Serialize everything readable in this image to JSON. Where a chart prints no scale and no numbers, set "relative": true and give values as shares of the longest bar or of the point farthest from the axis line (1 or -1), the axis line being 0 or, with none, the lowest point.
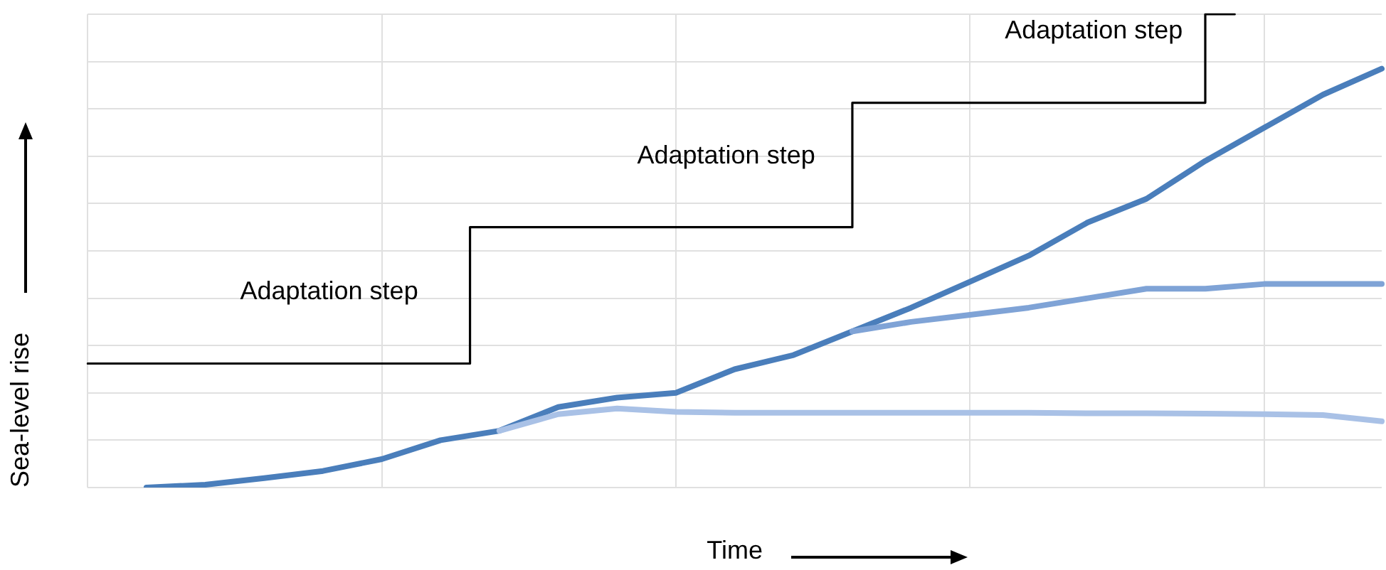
{
  "chart_data": {
    "type": "line",
    "relative": true,
    "xlabel": "Time",
    "ylabel": "Sea-level rise",
    "grid": true,
    "legend": false,
    "marker": "none",
    "line_style": "solid",
    "categories": [
      null,
      null,
      null,
      null,
      null,
      null,
      null,
      null,
      null,
      null,
      null,
      null,
      null,
      null,
      null,
      null,
      null,
      null,
      null,
      null,
      null,
      null,
      null,
      null,
      null,
      null,
      null,
      null,
      null,
      null,
      null,
      null,
      null,
      null,
      null,
      null,
      null,
      null,
      null,
      null,
      null,
      null,
      null,
      null,
      null
    ],
    "annotations": [
      "Adaptation step",
      "Adaptation step",
      "Adaptation step"
    ],
    "series": [
      {
        "type": "step",
        "color": "#000000",
        "values": [
          0.262,
          0.262,
          0.262,
          0.262,
          0.262,
          0.262,
          0.262,
          0.262,
          0.262,
          0.262,
          0.262,
          0.262,
          0.262,
          0.262,
          0.55,
          0.55,
          0.55,
          0.55,
          0.55,
          0.55,
          0.55,
          0.55,
          0.55,
          0.55,
          0.55,
          0.55,
          0.55,
          0.813,
          0.813,
          0.813,
          0.813,
          0.813,
          0.813,
          0.813,
          0.813,
          0.813,
          0.813,
          0.813,
          0.813,
          1.0,
          null,
          null,
          null,
          null,
          null
        ]
      },
      {
        "type": "line",
        "color": "#a9c1e6",
        "values": [
          null,
          null,
          null,
          null,
          null,
          null,
          null,
          null,
          null,
          null,
          null,
          null,
          null,
          null,
          0.12,
          null,
          0.155,
          null,
          0.167,
          null,
          0.16,
          null,
          0.158,
          null,
          0.158,
          null,
          0.158,
          null,
          0.158,
          null,
          0.158,
          null,
          0.158,
          null,
          0.157,
          null,
          0.157,
          null,
          0.156,
          null,
          0.155,
          null,
          0.153,
          null,
          0.14
        ]
      },
      {
        "type": "line",
        "color": "#7fa3d6",
        "values": [
          null,
          null,
          null,
          null,
          null,
          null,
          null,
          null,
          null,
          null,
          null,
          null,
          null,
          null,
          null,
          null,
          null,
          null,
          null,
          null,
          null,
          null,
          null,
          null,
          null,
          null,
          0.33,
          null,
          0.35,
          null,
          0.365,
          null,
          0.38,
          null,
          0.4,
          null,
          0.42,
          null,
          0.42,
          null,
          0.43,
          null,
          0.43,
          null,
          0.43
        ]
      },
      {
        "type": "line",
        "color": "#4a7ebb",
        "values": [
          null,
          null,
          0,
          null,
          0.006,
          null,
          0.02,
          null,
          0.035,
          null,
          0.06,
          null,
          0.1,
          null,
          0.12,
          null,
          0.17,
          null,
          0.19,
          null,
          0.2,
          null,
          0.25,
          null,
          0.28,
          null,
          0.33,
          null,
          0.38,
          null,
          0.435,
          null,
          0.49,
          null,
          0.56,
          null,
          0.61,
          null,
          0.69,
          null,
          0.76,
          null,
          0.83,
          null,
          0.885
        ]
      }
    ]
  }
}
